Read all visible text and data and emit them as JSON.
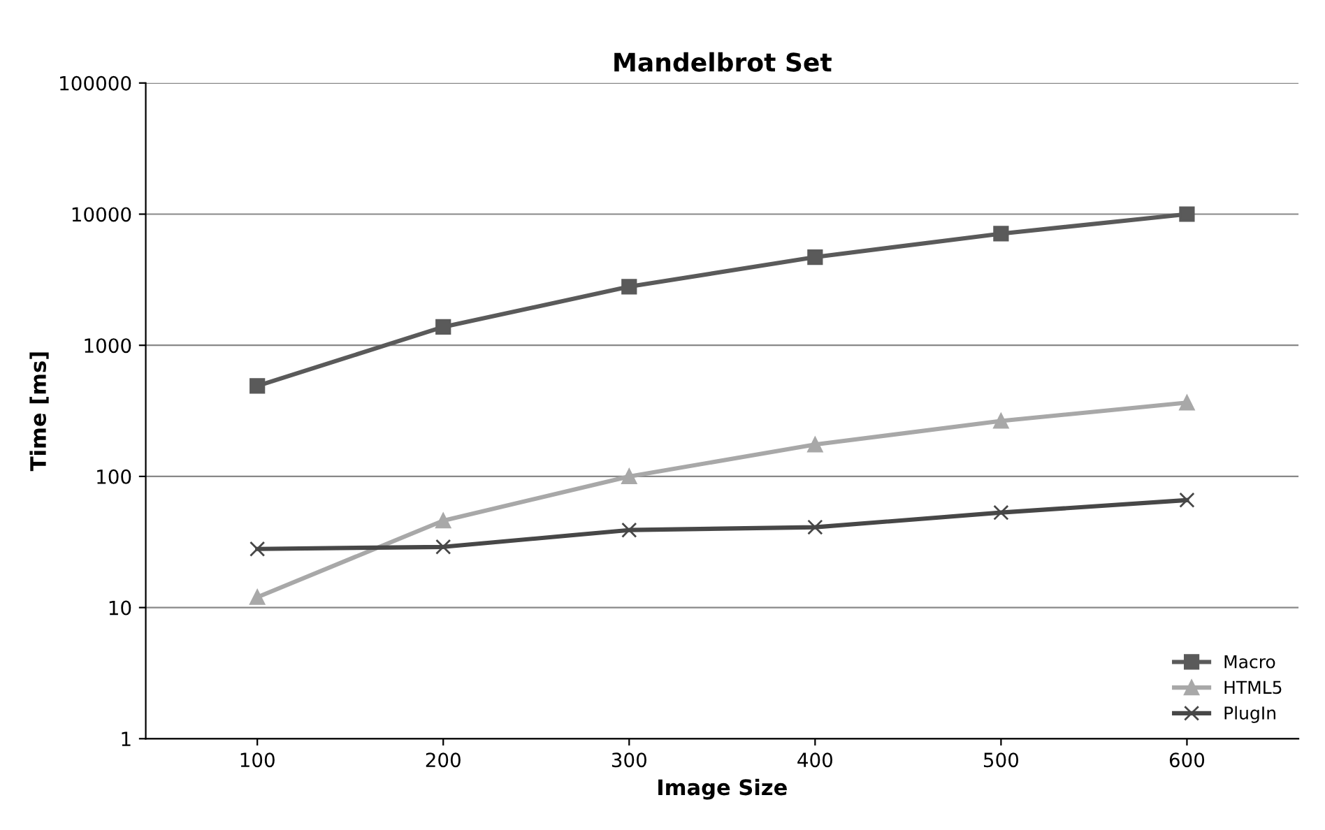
{
  "chart_data": {
    "type": "line",
    "title": "Mandelbrot Set",
    "xlabel": "Image Size",
    "ylabel": "Time [ms]",
    "categories": [
      "100",
      "200",
      "300",
      "400",
      "500",
      "600"
    ],
    "series": [
      {
        "name": "Macro",
        "color": "#5a5a5a",
        "marker": "square",
        "values": [
          490,
          1380,
          2800,
          4700,
          7100,
          10000
        ]
      },
      {
        "name": "HTML5",
        "color": "#a8a8a8",
        "marker": "triangle",
        "values": [
          12,
          46,
          100,
          175,
          265,
          365
        ]
      },
      {
        "name": "PlugIn",
        "color": "#474747",
        "marker": "cross",
        "values": [
          28,
          29,
          39,
          41,
          53,
          66
        ]
      }
    ],
    "log": "y",
    "ylim": [
      1,
      100000
    ],
    "yticks": [
      1,
      10,
      100,
      1000,
      10000,
      100000
    ],
    "grid": "y",
    "legend": "bottom right",
    "line_style": "solid"
  }
}
